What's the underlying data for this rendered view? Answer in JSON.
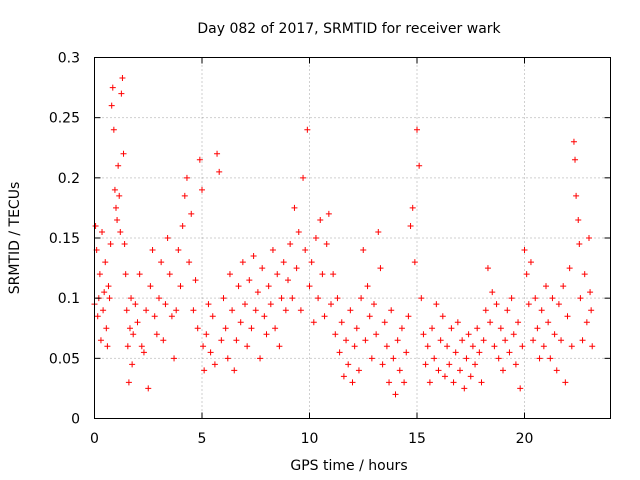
{
  "chart_data": {
    "type": "scatter",
    "title": "Day 082 of 2017, SRMTID for receiver wark",
    "xlabel": "GPS time / hours",
    "ylabel": "SRMTID / TECUs",
    "xlim": [
      0,
      24
    ],
    "ylim": [
      0,
      0.3
    ],
    "x_ticks": [
      0,
      5,
      10,
      15,
      20
    ],
    "x_tick_labels": [
      "0",
      "5",
      "10",
      "15",
      "20"
    ],
    "y_ticks": [
      0,
      0.05,
      0.1,
      0.15,
      0.2,
      0.25,
      0.3
    ],
    "y_tick_labels": [
      "0",
      "0.05",
      "0.1",
      "0.15",
      "0.2",
      "0.25",
      "0.3"
    ],
    "grid": true,
    "marker": "+",
    "color": "#ff0000",
    "series": [
      {
        "name": "SRMTID",
        "points": [
          [
            0.0,
            0.095
          ],
          [
            0.05,
            0.16
          ],
          [
            0.1,
            0.14
          ],
          [
            0.15,
            0.085
          ],
          [
            0.2,
            0.1
          ],
          [
            0.25,
            0.12
          ],
          [
            0.3,
            0.065
          ],
          [
            0.35,
            0.155
          ],
          [
            0.4,
            0.09
          ],
          [
            0.45,
            0.105
          ],
          [
            0.5,
            0.13
          ],
          [
            0.55,
            0.075
          ],
          [
            0.6,
            0.06
          ],
          [
            0.65,
            0.11
          ],
          [
            0.7,
            0.1
          ],
          [
            0.75,
            0.145
          ],
          [
            0.8,
            0.26
          ],
          [
            0.85,
            0.275
          ],
          [
            0.9,
            0.24
          ],
          [
            0.95,
            0.19
          ],
          [
            1.0,
            0.175
          ],
          [
            1.05,
            0.165
          ],
          [
            1.1,
            0.21
          ],
          [
            1.15,
            0.185
          ],
          [
            1.2,
            0.155
          ],
          [
            1.25,
            0.27
          ],
          [
            1.3,
            0.283
          ],
          [
            1.35,
            0.22
          ],
          [
            1.4,
            0.145
          ],
          [
            1.45,
            0.12
          ],
          [
            1.5,
            0.09
          ],
          [
            1.55,
            0.06
          ],
          [
            1.6,
            0.03
          ],
          [
            1.65,
            0.075
          ],
          [
            1.7,
            0.1
          ],
          [
            1.75,
            0.045
          ],
          [
            1.8,
            0.07
          ],
          [
            1.9,
            0.095
          ],
          [
            2.0,
            0.08
          ],
          [
            2.1,
            0.12
          ],
          [
            2.2,
            0.06
          ],
          [
            2.3,
            0.055
          ],
          [
            2.4,
            0.09
          ],
          [
            2.5,
            0.025
          ],
          [
            2.6,
            0.11
          ],
          [
            2.7,
            0.14
          ],
          [
            2.8,
            0.085
          ],
          [
            2.9,
            0.07
          ],
          [
            3.0,
            0.1
          ],
          [
            3.1,
            0.13
          ],
          [
            3.2,
            0.065
          ],
          [
            3.3,
            0.095
          ],
          [
            3.4,
            0.15
          ],
          [
            3.5,
            0.12
          ],
          [
            3.6,
            0.085
          ],
          [
            3.7,
            0.05
          ],
          [
            3.8,
            0.09
          ],
          [
            3.9,
            0.14
          ],
          [
            4.0,
            0.11
          ],
          [
            4.1,
            0.16
          ],
          [
            4.2,
            0.185
          ],
          [
            4.3,
            0.2
          ],
          [
            4.4,
            0.13
          ],
          [
            4.5,
            0.17
          ],
          [
            4.6,
            0.09
          ],
          [
            4.7,
            0.115
          ],
          [
            4.8,
            0.075
          ],
          [
            4.9,
            0.215
          ],
          [
            5.0,
            0.19
          ],
          [
            5.05,
            0.06
          ],
          [
            5.1,
            0.04
          ],
          [
            5.2,
            0.07
          ],
          [
            5.3,
            0.095
          ],
          [
            5.4,
            0.055
          ],
          [
            5.5,
            0.085
          ],
          [
            5.6,
            0.045
          ],
          [
            5.7,
            0.22
          ],
          [
            5.8,
            0.205
          ],
          [
            5.9,
            0.065
          ],
          [
            6.0,
            0.1
          ],
          [
            6.1,
            0.075
          ],
          [
            6.2,
            0.05
          ],
          [
            6.3,
            0.12
          ],
          [
            6.4,
            0.09
          ],
          [
            6.5,
            0.04
          ],
          [
            6.6,
            0.065
          ],
          [
            6.7,
            0.11
          ],
          [
            6.8,
            0.08
          ],
          [
            6.9,
            0.13
          ],
          [
            7.0,
            0.095
          ],
          [
            7.1,
            0.06
          ],
          [
            7.2,
            0.115
          ],
          [
            7.3,
            0.075
          ],
          [
            7.4,
            0.135
          ],
          [
            7.5,
            0.09
          ],
          [
            7.6,
            0.105
          ],
          [
            7.7,
            0.05
          ],
          [
            7.8,
            0.125
          ],
          [
            7.9,
            0.085
          ],
          [
            8.0,
            0.07
          ],
          [
            8.1,
            0.11
          ],
          [
            8.2,
            0.095
          ],
          [
            8.3,
            0.14
          ],
          [
            8.4,
            0.075
          ],
          [
            8.5,
            0.12
          ],
          [
            8.6,
            0.06
          ],
          [
            8.7,
            0.1
          ],
          [
            8.8,
            0.13
          ],
          [
            8.9,
            0.09
          ],
          [
            9.0,
            0.115
          ],
          [
            9.1,
            0.145
          ],
          [
            9.2,
            0.1
          ],
          [
            9.3,
            0.175
          ],
          [
            9.4,
            0.125
          ],
          [
            9.5,
            0.155
          ],
          [
            9.6,
            0.09
          ],
          [
            9.7,
            0.2
          ],
          [
            9.8,
            0.14
          ],
          [
            9.9,
            0.24
          ],
          [
            10.0,
            0.11
          ],
          [
            10.1,
            0.13
          ],
          [
            10.2,
            0.08
          ],
          [
            10.3,
            0.15
          ],
          [
            10.4,
            0.1
          ],
          [
            10.5,
            0.165
          ],
          [
            10.6,
            0.12
          ],
          [
            10.7,
            0.085
          ],
          [
            10.8,
            0.145
          ],
          [
            10.9,
            0.17
          ],
          [
            11.0,
            0.095
          ],
          [
            11.1,
            0.12
          ],
          [
            11.2,
            0.07
          ],
          [
            11.3,
            0.1
          ],
          [
            11.4,
            0.055
          ],
          [
            11.5,
            0.08
          ],
          [
            11.6,
            0.035
          ],
          [
            11.7,
            0.065
          ],
          [
            11.8,
            0.045
          ],
          [
            11.9,
            0.09
          ],
          [
            12.0,
            0.03
          ],
          [
            12.1,
            0.06
          ],
          [
            12.2,
            0.075
          ],
          [
            12.3,
            0.04
          ],
          [
            12.4,
            0.1
          ],
          [
            12.5,
            0.14
          ],
          [
            12.6,
            0.065
          ],
          [
            12.7,
            0.11
          ],
          [
            12.8,
            0.085
          ],
          [
            12.9,
            0.05
          ],
          [
            13.0,
            0.095
          ],
          [
            13.1,
            0.07
          ],
          [
            13.2,
            0.155
          ],
          [
            13.3,
            0.125
          ],
          [
            13.4,
            0.045
          ],
          [
            13.5,
            0.08
          ],
          [
            13.6,
            0.06
          ],
          [
            13.7,
            0.03
          ],
          [
            13.8,
            0.09
          ],
          [
            13.9,
            0.05
          ],
          [
            14.0,
            0.02
          ],
          [
            14.1,
            0.065
          ],
          [
            14.2,
            0.04
          ],
          [
            14.3,
            0.075
          ],
          [
            14.4,
            0.03
          ],
          [
            14.5,
            0.055
          ],
          [
            14.6,
            0.085
          ],
          [
            14.7,
            0.16
          ],
          [
            14.8,
            0.175
          ],
          [
            14.9,
            0.13
          ],
          [
            15.0,
            0.24
          ],
          [
            15.1,
            0.21
          ],
          [
            15.2,
            0.1
          ],
          [
            15.3,
            0.07
          ],
          [
            15.4,
            0.045
          ],
          [
            15.5,
            0.06
          ],
          [
            15.6,
            0.03
          ],
          [
            15.7,
            0.075
          ],
          [
            15.8,
            0.05
          ],
          [
            15.9,
            0.095
          ],
          [
            16.0,
            0.04
          ],
          [
            16.1,
            0.065
          ],
          [
            16.2,
            0.085
          ],
          [
            16.3,
            0.035
          ],
          [
            16.4,
            0.06
          ],
          [
            16.5,
            0.045
          ],
          [
            16.6,
            0.075
          ],
          [
            16.7,
            0.03
          ],
          [
            16.8,
            0.055
          ],
          [
            16.9,
            0.08
          ],
          [
            17.0,
            0.04
          ],
          [
            17.1,
            0.065
          ],
          [
            17.2,
            0.025
          ],
          [
            17.3,
            0.05
          ],
          [
            17.4,
            0.07
          ],
          [
            17.5,
            0.035
          ],
          [
            17.6,
            0.06
          ],
          [
            17.7,
            0.045
          ],
          [
            17.8,
            0.075
          ],
          [
            17.9,
            0.055
          ],
          [
            18.0,
            0.03
          ],
          [
            18.1,
            0.065
          ],
          [
            18.2,
            0.09
          ],
          [
            18.3,
            0.125
          ],
          [
            18.4,
            0.08
          ],
          [
            18.5,
            0.105
          ],
          [
            18.6,
            0.06
          ],
          [
            18.7,
            0.095
          ],
          [
            18.8,
            0.05
          ],
          [
            18.9,
            0.075
          ],
          [
            19.0,
            0.04
          ],
          [
            19.1,
            0.065
          ],
          [
            19.2,
            0.09
          ],
          [
            19.3,
            0.055
          ],
          [
            19.4,
            0.1
          ],
          [
            19.5,
            0.07
          ],
          [
            19.6,
            0.045
          ],
          [
            19.7,
            0.08
          ],
          [
            19.8,
            0.025
          ],
          [
            19.9,
            0.06
          ],
          [
            20.0,
            0.14
          ],
          [
            20.1,
            0.12
          ],
          [
            20.2,
            0.095
          ],
          [
            20.3,
            0.13
          ],
          [
            20.4,
            0.065
          ],
          [
            20.5,
            0.1
          ],
          [
            20.6,
            0.075
          ],
          [
            20.7,
            0.05
          ],
          [
            20.8,
            0.09
          ],
          [
            20.9,
            0.06
          ],
          [
            21.0,
            0.11
          ],
          [
            21.1,
            0.08
          ],
          [
            21.2,
            0.05
          ],
          [
            21.3,
            0.1
          ],
          [
            21.4,
            0.07
          ],
          [
            21.5,
            0.04
          ],
          [
            21.6,
            0.095
          ],
          [
            21.7,
            0.065
          ],
          [
            21.8,
            0.11
          ],
          [
            21.9,
            0.03
          ],
          [
            22.0,
            0.085
          ],
          [
            22.1,
            0.125
          ],
          [
            22.2,
            0.06
          ],
          [
            22.3,
            0.23
          ],
          [
            22.35,
            0.215
          ],
          [
            22.4,
            0.185
          ],
          [
            22.5,
            0.165
          ],
          [
            22.55,
            0.145
          ],
          [
            22.6,
            0.1
          ],
          [
            22.7,
            0.065
          ],
          [
            22.8,
            0.12
          ],
          [
            22.9,
            0.08
          ],
          [
            23.0,
            0.15
          ],
          [
            23.05,
            0.105
          ],
          [
            23.1,
            0.09
          ],
          [
            23.15,
            0.06
          ]
        ]
      }
    ]
  }
}
